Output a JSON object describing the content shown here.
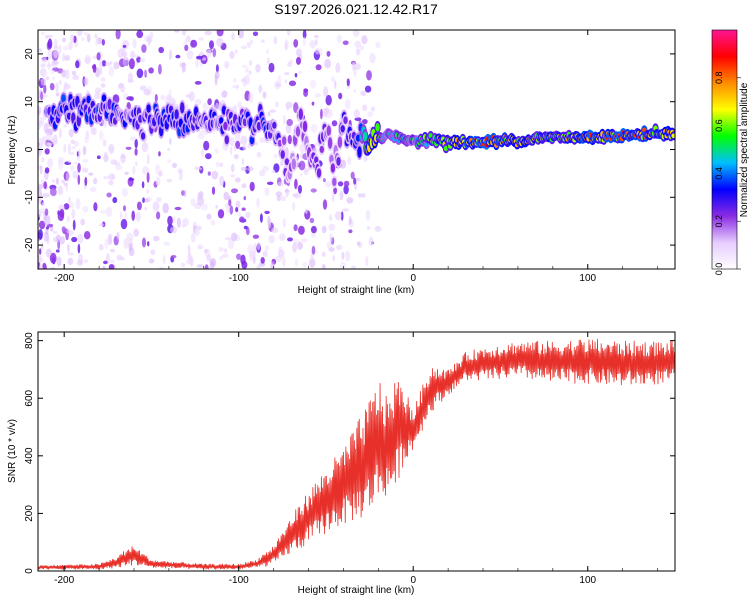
{
  "figure": {
    "title": "S197.2026.021.12.42.R17"
  },
  "chart_data": [
    {
      "type": "heatmap",
      "title": "S197.2026.021.12.42.R17",
      "xlabel": "Height of straight line (km)",
      "ylabel": "Frequency (Hz)",
      "xlim": [
        -215,
        150
      ],
      "ylim": [
        -25,
        25
      ],
      "xticks": [
        -200,
        -100,
        0,
        100
      ],
      "yticks": [
        -20,
        -10,
        0,
        10,
        20
      ],
      "colorbar": {
        "label": "Normalized spectral amplitude",
        "range": [
          0,
          1
        ],
        "ticks": [
          0.0,
          0.2,
          0.4,
          0.6,
          0.8
        ],
        "colors": [
          "#ffffff",
          "#e6ccff",
          "#8a2be2",
          "#0000ff",
          "#00bfff",
          "#00ff00",
          "#ffff00",
          "#ff8c00",
          "#ff0000",
          "#ff1493"
        ]
      },
      "ridge": {
        "description": "dominant frequency track vs height",
        "x": [
          -210,
          -200,
          -180,
          -160,
          -140,
          -120,
          -100,
          -90,
          -80,
          -75,
          -70,
          -65,
          -60,
          -55,
          -50,
          -45,
          -40,
          -35,
          -30,
          -25,
          -20,
          -15,
          -10,
          -5,
          0,
          10,
          20,
          40,
          60,
          80,
          100,
          120,
          150
        ],
        "y": [
          8,
          8,
          8,
          7,
          6,
          6,
          5,
          5,
          4,
          -1,
          -5,
          6,
          0,
          -4,
          4,
          -4,
          5,
          2,
          3,
          1,
          2,
          3,
          3,
          2,
          2,
          2,
          1.5,
          1.5,
          2,
          2.5,
          2.5,
          3,
          3.5
        ],
        "amplitude": [
          0.3,
          0.35,
          0.35,
          0.3,
          0.35,
          0.3,
          0.3,
          0.35,
          0.3,
          0.25,
          0.2,
          0.25,
          0.2,
          0.25,
          0.25,
          0.2,
          0.3,
          0.3,
          0.4,
          0.8,
          0.6,
          0.5,
          0.5,
          0.6,
          0.5,
          0.6,
          0.75,
          0.85,
          0.7,
          0.7,
          0.8,
          0.8,
          0.75
        ]
      }
    },
    {
      "type": "line",
      "xlabel": "Height of straight line (km)",
      "ylabel": "SNR (10 * v/v)",
      "xlim": [
        -215,
        150
      ],
      "ylim": [
        0,
        830
      ],
      "xticks": [
        -200,
        -100,
        0,
        100
      ],
      "yticks": [
        0,
        200,
        400,
        600,
        800
      ],
      "series": [
        {
          "name": "SNR",
          "color": "#e8302a",
          "envelope_x": [
            -215,
            -180,
            -170,
            -165,
            -160,
            -150,
            -120,
            -100,
            -90,
            -80,
            -70,
            -60,
            -50,
            -40,
            -30,
            -25,
            -20,
            -15,
            -10,
            -5,
            0,
            10,
            20,
            30,
            40,
            60,
            80,
            100,
            120,
            150
          ],
          "envelope_low": [
            5,
            5,
            10,
            15,
            20,
            10,
            5,
            5,
            10,
            20,
            60,
            90,
            130,
            160,
            180,
            200,
            240,
            260,
            280,
            380,
            420,
            550,
            610,
            660,
            660,
            670,
            650,
            650,
            640,
            650
          ],
          "envelope_high": [
            20,
            25,
            50,
            75,
            90,
            40,
            25,
            25,
            40,
            90,
            190,
            280,
            360,
            430,
            540,
            600,
            680,
            600,
            680,
            640,
            560,
            720,
            700,
            760,
            780,
            800,
            800,
            810,
            800,
            800
          ]
        }
      ]
    }
  ]
}
